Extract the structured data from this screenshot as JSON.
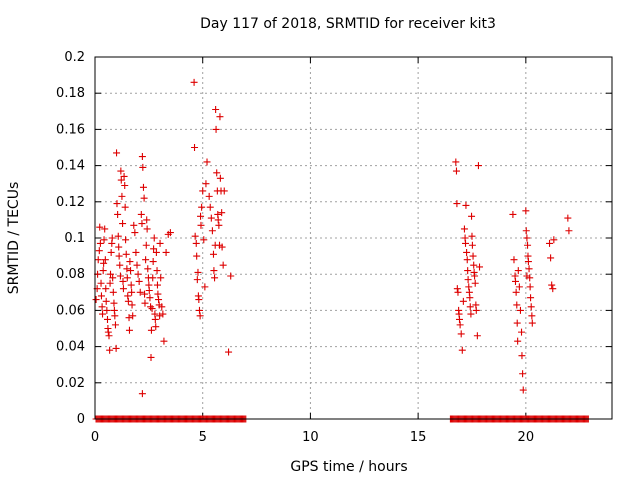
{
  "chart_data": {
    "type": "scatter",
    "title": "Day 117 of 2018, SRMTID for receiver kit3",
    "xlabel": "GPS time / hours",
    "ylabel": "SRMTID / TECUs",
    "xlim": [
      0,
      24
    ],
    "ylim": [
      0,
      0.2
    ],
    "xticks": [
      "0",
      "5",
      "10",
      "15",
      "20"
    ],
    "yticks": [
      "0",
      "0.02",
      "0.04",
      "0.06",
      "0.08",
      "0.1",
      "0.12",
      "0.14",
      "0.16",
      "0.18",
      "0.2"
    ],
    "grid": true,
    "marker": "plus",
    "color": "#dd0000",
    "series": [
      {
        "points": [
          [
            0.05,
            0.066
          ],
          [
            0.1,
            0.072
          ],
          [
            0.12,
            0.08
          ],
          [
            0.15,
            0.088
          ],
          [
            0.2,
            0.093
          ],
          [
            0.22,
            0.106
          ],
          [
            0.25,
            0.097
          ],
          [
            0.28,
            0.075
          ],
          [
            0.3,
            0.068
          ],
          [
            0.33,
            0.062
          ],
          [
            0.35,
            0.058
          ],
          [
            0.38,
            0.082
          ],
          [
            0.4,
            0.086
          ],
          [
            0.42,
            0.099
          ],
          [
            0.45,
            0.105
          ],
          [
            0.48,
            0.088
          ],
          [
            0.5,
            0.072
          ],
          [
            0.52,
            0.065
          ],
          [
            0.55,
            0.06
          ],
          [
            0.58,
            0.055
          ],
          [
            0.6,
            0.05
          ],
          [
            0.62,
            0.048
          ],
          [
            0.65,
            0.046
          ],
          [
            0.68,
            0.038
          ],
          [
            0.7,
            0.075
          ],
          [
            0.72,
            0.08
          ],
          [
            0.75,
            0.092
          ],
          [
            0.78,
            0.097
          ],
          [
            0.8,
            0.1
          ],
          [
            0.82,
            0.078
          ],
          [
            0.85,
            0.07
          ],
          [
            0.88,
            0.064
          ],
          [
            0.9,
            0.06
          ],
          [
            0.92,
            0.057
          ],
          [
            0.95,
            0.052
          ],
          [
            0.98,
            0.039
          ],
          [
            1.0,
            0.147
          ],
          [
            1.02,
            0.119
          ],
          [
            1.05,
            0.113
          ],
          [
            1.08,
            0.101
          ],
          [
            1.1,
            0.095
          ],
          [
            1.12,
            0.09
          ],
          [
            1.15,
            0.085
          ],
          [
            1.18,
            0.079
          ],
          [
            1.2,
            0.137
          ],
          [
            1.22,
            0.132
          ],
          [
            1.25,
            0.123
          ],
          [
            1.28,
            0.108
          ],
          [
            1.3,
            0.076
          ],
          [
            1.32,
            0.072
          ],
          [
            1.35,
            0.134
          ],
          [
            1.38,
            0.129
          ],
          [
            1.4,
            0.117
          ],
          [
            1.42,
            0.099
          ],
          [
            1.45,
            0.091
          ],
          [
            1.48,
            0.083
          ],
          [
            1.5,
            0.078
          ],
          [
            1.52,
            0.068
          ],
          [
            1.55,
            0.065
          ],
          [
            1.58,
            0.056
          ],
          [
            1.6,
            0.049
          ],
          [
            1.62,
            0.087
          ],
          [
            1.65,
            0.082
          ],
          [
            1.68,
            0.074
          ],
          [
            1.7,
            0.07
          ],
          [
            1.72,
            0.063
          ],
          [
            1.75,
            0.057
          ],
          [
            1.8,
            0.107
          ],
          [
            1.85,
            0.103
          ],
          [
            1.9,
            0.092
          ],
          [
            1.95,
            0.085
          ],
          [
            2.0,
            0.08
          ],
          [
            2.05,
            0.076
          ],
          [
            2.1,
            0.07
          ],
          [
            2.15,
            0.113
          ],
          [
            2.18,
            0.108
          ],
          [
            2.2,
            0.145
          ],
          [
            2.22,
            0.139
          ],
          [
            2.25,
            0.128
          ],
          [
            2.28,
            0.122
          ],
          [
            2.3,
            0.069
          ],
          [
            2.32,
            0.064
          ],
          [
            2.35,
            0.088
          ],
          [
            2.38,
            0.096
          ],
          [
            2.4,
            0.11
          ],
          [
            2.42,
            0.105
          ],
          [
            2.45,
            0.083
          ],
          [
            2.48,
            0.078
          ],
          [
            2.5,
            0.074
          ],
          [
            2.52,
            0.071
          ],
          [
            2.55,
            0.067
          ],
          [
            2.58,
            0.062
          ],
          [
            2.6,
            0.034
          ],
          [
            2.62,
            0.049
          ],
          [
            2.65,
            0.061
          ],
          [
            2.68,
            0.078
          ],
          [
            2.7,
            0.087
          ],
          [
            2.72,
            0.094
          ],
          [
            2.75,
            0.1
          ],
          [
            2.78,
            0.058
          ],
          [
            2.8,
            0.055
          ],
          [
            2.82,
            0.051
          ],
          [
            2.85,
            0.092
          ],
          [
            2.88,
            0.082
          ],
          [
            2.9,
            0.074
          ],
          [
            2.92,
            0.069
          ],
          [
            2.95,
            0.066
          ],
          [
            2.98,
            0.063
          ],
          [
            3.0,
            0.057
          ],
          [
            3.02,
            0.097
          ],
          [
            3.05,
            0.078
          ],
          [
            3.1,
            0.062
          ],
          [
            3.15,
            0.058
          ],
          [
            3.2,
            0.043
          ],
          [
            3.3,
            0.092
          ],
          [
            3.4,
            0.102
          ],
          [
            3.5,
            0.103
          ],
          [
            2.2,
            0.014
          ],
          [
            4.6,
            0.186
          ],
          [
            4.62,
            0.15
          ],
          [
            4.65,
            0.101
          ],
          [
            4.7,
            0.097
          ],
          [
            4.72,
            0.09
          ],
          [
            4.75,
            0.077
          ],
          [
            4.78,
            0.081
          ],
          [
            4.8,
            0.068
          ],
          [
            4.82,
            0.066
          ],
          [
            4.85,
            0.06
          ],
          [
            4.88,
            0.057
          ],
          [
            4.9,
            0.112
          ],
          [
            4.92,
            0.107
          ],
          [
            4.95,
            0.117
          ],
          [
            5.0,
            0.126
          ],
          [
            5.05,
            0.099
          ],
          [
            5.1,
            0.073
          ],
          [
            5.15,
            0.13
          ],
          [
            5.2,
            0.142
          ],
          [
            5.3,
            0.123
          ],
          [
            5.35,
            0.117
          ],
          [
            5.4,
            0.111
          ],
          [
            5.45,
            0.104
          ],
          [
            5.5,
            0.091
          ],
          [
            5.52,
            0.082
          ],
          [
            5.55,
            0.078
          ],
          [
            5.58,
            0.096
          ],
          [
            5.6,
            0.171
          ],
          [
            5.62,
            0.16
          ],
          [
            5.65,
            0.136
          ],
          [
            5.68,
            0.126
          ],
          [
            5.7,
            0.113
          ],
          [
            5.72,
            0.11
          ],
          [
            5.75,
            0.107
          ],
          [
            5.78,
            0.096
          ],
          [
            5.8,
            0.167
          ],
          [
            5.82,
            0.133
          ],
          [
            5.85,
            0.126
          ],
          [
            5.88,
            0.114
          ],
          [
            5.9,
            0.095
          ],
          [
            5.95,
            0.085
          ],
          [
            6.0,
            0.126
          ],
          [
            6.2,
            0.037
          ],
          [
            6.3,
            0.079
          ],
          [
            16.75,
            0.142
          ],
          [
            16.78,
            0.137
          ],
          [
            16.8,
            0.119
          ],
          [
            16.82,
            0.072
          ],
          [
            16.85,
            0.07
          ],
          [
            16.88,
            0.06
          ],
          [
            16.9,
            0.058
          ],
          [
            16.92,
            0.055
          ],
          [
            16.95,
            0.052
          ],
          [
            17.0,
            0.047
          ],
          [
            17.05,
            0.038
          ],
          [
            17.1,
            0.065
          ],
          [
            17.15,
            0.105
          ],
          [
            17.18,
            0.1
          ],
          [
            17.2,
            0.097
          ],
          [
            17.22,
            0.118
          ],
          [
            17.25,
            0.092
          ],
          [
            17.28,
            0.088
          ],
          [
            17.3,
            0.082
          ],
          [
            17.32,
            0.077
          ],
          [
            17.35,
            0.073
          ],
          [
            17.38,
            0.07
          ],
          [
            17.4,
            0.067
          ],
          [
            17.42,
            0.062
          ],
          [
            17.45,
            0.058
          ],
          [
            17.48,
            0.112
          ],
          [
            17.5,
            0.101
          ],
          [
            17.52,
            0.096
          ],
          [
            17.55,
            0.09
          ],
          [
            17.58,
            0.085
          ],
          [
            17.6,
            0.081
          ],
          [
            17.62,
            0.079
          ],
          [
            17.65,
            0.075
          ],
          [
            17.68,
            0.063
          ],
          [
            17.7,
            0.06
          ],
          [
            17.75,
            0.046
          ],
          [
            17.8,
            0.14
          ],
          [
            17.85,
            0.084
          ],
          [
            19.4,
            0.113
          ],
          [
            19.45,
            0.088
          ],
          [
            19.5,
            0.079
          ],
          [
            19.52,
            0.076
          ],
          [
            19.55,
            0.07
          ],
          [
            19.58,
            0.063
          ],
          [
            19.6,
            0.053
          ],
          [
            19.62,
            0.043
          ],
          [
            19.65,
            0.082
          ],
          [
            19.7,
            0.073
          ],
          [
            19.75,
            0.06
          ],
          [
            19.8,
            0.048
          ],
          [
            19.82,
            0.035
          ],
          [
            19.85,
            0.025
          ],
          [
            19.88,
            0.016
          ],
          [
            20.0,
            0.115
          ],
          [
            20.02,
            0.104
          ],
          [
            20.05,
            0.1
          ],
          [
            20.08,
            0.096
          ],
          [
            20.1,
            0.09
          ],
          [
            20.12,
            0.087
          ],
          [
            20.15,
            0.083
          ],
          [
            20.18,
            0.078
          ],
          [
            20.2,
            0.073
          ],
          [
            20.22,
            0.067
          ],
          [
            20.25,
            0.062
          ],
          [
            20.28,
            0.057
          ],
          [
            20.3,
            0.053
          ],
          [
            20.05,
            0.079
          ],
          [
            21.1,
            0.097
          ],
          [
            21.15,
            0.089
          ],
          [
            21.2,
            0.074
          ],
          [
            21.3,
            0.099
          ],
          [
            21.25,
            0.072
          ],
          [
            21.95,
            0.111
          ],
          [
            22.0,
            0.104
          ]
        ]
      }
    ],
    "zero_bands": [
      [
        0.05,
        7.0
      ],
      [
        16.5,
        22.9
      ]
    ]
  }
}
